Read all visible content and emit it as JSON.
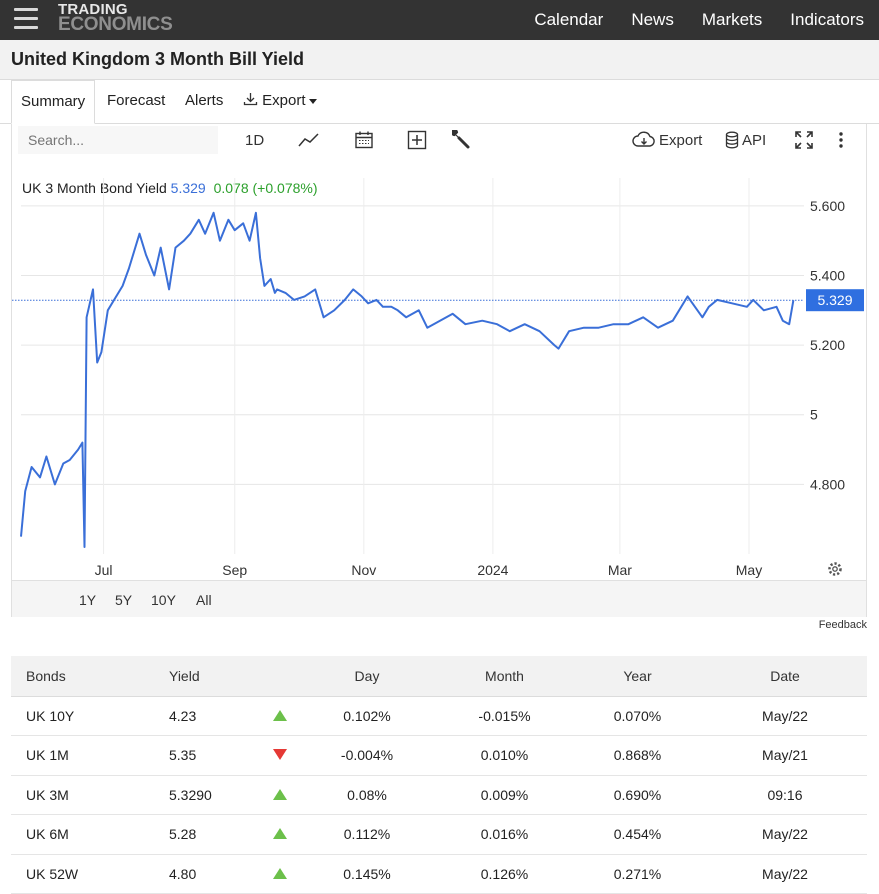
{
  "nav": {
    "logo_line1": "TRADING",
    "logo_line2": "ECONOMICS",
    "links": [
      "Calendar",
      "News",
      "Markets",
      "Indicators"
    ]
  },
  "title": "United Kingdom 3 Month Bill Yield",
  "tabs": [
    "Summary",
    "Forecast",
    "Alerts",
    "Export"
  ],
  "toolbar": {
    "search_placeholder": "Search...",
    "interval": "1D",
    "export_label": "Export",
    "api_label": "API"
  },
  "legend": {
    "name": "UK 3 Month Bond Yield",
    "value": "5.329",
    "change": "0.078 (+0.078%)"
  },
  "ranges": [
    "1Y",
    "5Y",
    "10Y",
    "All"
  ],
  "selected_range": "1Y",
  "feedback": "Feedback",
  "colors": {
    "line": "#3a6fd8",
    "up": "#6cc04a",
    "down": "#e53935",
    "positive_text": "#2e8b2e"
  },
  "chart_data": {
    "type": "line",
    "series": [
      {
        "name": "UK 3 Month Bond Yield",
        "last": 5.329
      }
    ],
    "x": [
      "2023-05-23",
      "2023-05-25",
      "2023-05-28",
      "2023-06-01",
      "2023-06-04",
      "2023-06-08",
      "2023-06-12",
      "2023-06-15",
      "2023-06-19",
      "2023-06-21",
      "2023-06-22",
      "2023-06-23",
      "2023-06-26",
      "2023-06-28",
      "2023-06-30",
      "2023-07-03",
      "2023-07-06",
      "2023-07-10",
      "2023-07-13",
      "2023-07-18",
      "2023-07-21",
      "2023-07-25",
      "2023-07-28",
      "2023-08-01",
      "2023-08-04",
      "2023-08-08",
      "2023-08-11",
      "2023-08-15",
      "2023-08-18",
      "2023-08-22",
      "2023-08-25",
      "2023-08-29",
      "2023-09-01",
      "2023-09-05",
      "2023-09-08",
      "2023-09-11",
      "2023-09-13",
      "2023-09-15",
      "2023-09-18",
      "2023-09-20",
      "2023-09-21",
      "2023-09-25",
      "2023-09-29",
      "2023-10-04",
      "2023-10-09",
      "2023-10-13",
      "2023-10-18",
      "2023-10-23",
      "2023-10-27",
      "2023-10-31",
      "2023-11-03",
      "2023-11-07",
      "2023-11-10",
      "2023-11-14",
      "2023-11-17",
      "2023-11-21",
      "2023-11-27",
      "2023-12-01",
      "2023-12-07",
      "2023-12-13",
      "2023-12-19",
      "2023-12-27",
      "2024-01-03",
      "2024-01-09",
      "2024-01-16",
      "2024-01-23",
      "2024-01-30",
      "2024-02-01",
      "2024-02-06",
      "2024-02-13",
      "2024-02-20",
      "2024-02-27",
      "2024-03-05",
      "2024-03-12",
      "2024-03-19",
      "2024-03-26",
      "2024-04-02",
      "2024-04-09",
      "2024-04-12",
      "2024-04-16",
      "2024-04-23",
      "2024-04-30",
      "2024-05-03",
      "2024-05-08",
      "2024-05-14",
      "2024-05-17",
      "2024-05-20",
      "2024-05-22"
    ],
    "y": [
      4.65,
      4.78,
      4.85,
      4.82,
      4.88,
      4.8,
      4.86,
      4.87,
      4.9,
      4.92,
      4.62,
      5.28,
      5.36,
      5.15,
      5.18,
      5.3,
      5.33,
      5.37,
      5.42,
      5.52,
      5.46,
      5.4,
      5.48,
      5.36,
      5.48,
      5.5,
      5.52,
      5.56,
      5.52,
      5.58,
      5.5,
      5.56,
      5.53,
      5.55,
      5.5,
      5.58,
      5.45,
      5.37,
      5.39,
      5.35,
      5.36,
      5.35,
      5.33,
      5.34,
      5.36,
      5.28,
      5.3,
      5.33,
      5.36,
      5.34,
      5.32,
      5.33,
      5.31,
      5.31,
      5.3,
      5.28,
      5.3,
      5.25,
      5.27,
      5.29,
      5.26,
      5.27,
      5.26,
      5.24,
      5.26,
      5.24,
      5.2,
      5.19,
      5.24,
      5.25,
      5.25,
      5.26,
      5.26,
      5.28,
      5.25,
      5.27,
      5.34,
      5.28,
      5.31,
      5.33,
      5.32,
      5.31,
      5.33,
      5.3,
      5.31,
      5.27,
      5.26,
      5.329
    ],
    "x_ticks": [
      "Jul",
      "Sep",
      "Nov",
      "2024",
      "Mar",
      "May"
    ],
    "y_ticks": [
      "5.600",
      "5.400",
      "5.200",
      "5",
      "4.800"
    ],
    "ylim": [
      4.6,
      5.68
    ],
    "current_label": "5.329",
    "grid": true,
    "legend_placement": "top-left"
  },
  "table": {
    "headers": [
      "Bonds",
      "Yield",
      "",
      "Day",
      "Month",
      "Year",
      "Date"
    ],
    "rows": [
      {
        "name": "UK 10Y",
        "yield": "4.23",
        "dir": "up",
        "day": "0.102%",
        "month": "-0.015%",
        "year": "0.070%",
        "date": "May/22"
      },
      {
        "name": "UK 1M",
        "yield": "5.35",
        "dir": "down",
        "day": "-0.004%",
        "month": "0.010%",
        "year": "0.868%",
        "date": "May/21"
      },
      {
        "name": "UK 3M",
        "yield": "5.3290",
        "dir": "up",
        "day": "0.08%",
        "month": "0.009%",
        "year": "0.690%",
        "date": "09:16"
      },
      {
        "name": "UK 6M",
        "yield": "5.28",
        "dir": "up",
        "day": "0.112%",
        "month": "0.016%",
        "year": "0.454%",
        "date": "May/22"
      },
      {
        "name": "UK 52W",
        "yield": "4.80",
        "dir": "up",
        "day": "0.145%",
        "month": "0.126%",
        "year": "0.271%",
        "date": "May/22"
      }
    ]
  }
}
